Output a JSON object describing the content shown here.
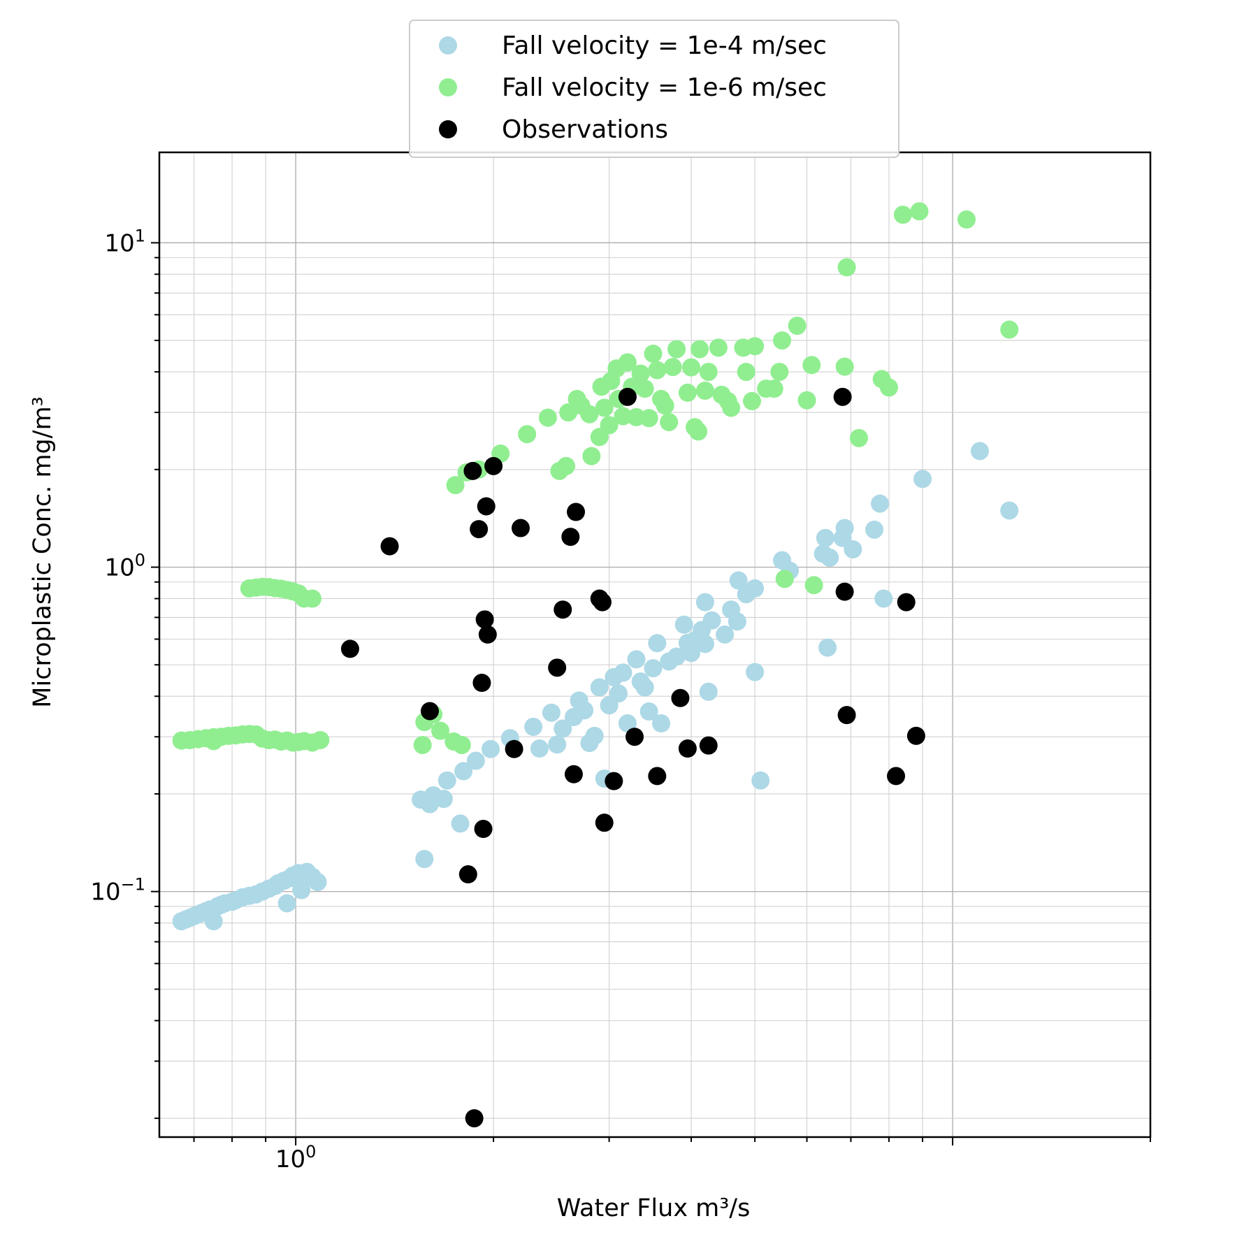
{
  "chart_data": {
    "type": "scatter",
    "title": "",
    "xlabel": "Water Flux m³/s",
    "ylabel": "Microplastic Conc. mg/m³",
    "xscale": "log",
    "yscale": "log",
    "xlim": [
      0.62,
      20
    ],
    "ylim": [
      0.0175,
      19
    ],
    "grid": true,
    "legend_position": "top-center",
    "x_ticks": [
      {
        "value": 1,
        "label": "10",
        "exp": "0"
      }
    ],
    "y_ticks": [
      {
        "value": 0.1,
        "label": "10",
        "exp": "−1"
      },
      {
        "value": 1,
        "label": "10",
        "exp": "0"
      },
      {
        "value": 10,
        "label": "10",
        "exp": "1"
      }
    ],
    "series": [
      {
        "name": "Fall velocity = 1e-4 m/sec",
        "color": "#add8e6",
        "points": [
          [
            0.67,
            0.081
          ],
          [
            0.68,
            0.082
          ],
          [
            0.69,
            0.083
          ],
          [
            0.7,
            0.084
          ],
          [
            0.71,
            0.085
          ],
          [
            0.72,
            0.086
          ],
          [
            0.73,
            0.087
          ],
          [
            0.74,
            0.088
          ],
          [
            0.75,
            0.081
          ],
          [
            0.76,
            0.09
          ],
          [
            0.77,
            0.091
          ],
          [
            0.78,
            0.092
          ],
          [
            0.8,
            0.093
          ],
          [
            0.81,
            0.094
          ],
          [
            0.83,
            0.096
          ],
          [
            0.85,
            0.097
          ],
          [
            0.87,
            0.098
          ],
          [
            0.89,
            0.1
          ],
          [
            0.91,
            0.102
          ],
          [
            0.93,
            0.104
          ],
          [
            0.94,
            0.106
          ],
          [
            0.96,
            0.108
          ],
          [
            0.97,
            0.092
          ],
          [
            0.98,
            0.11
          ],
          [
            0.99,
            0.112
          ],
          [
            1.0,
            0.11
          ],
          [
            1.01,
            0.114
          ],
          [
            1.02,
            0.101
          ],
          [
            1.04,
            0.115
          ],
          [
            1.06,
            0.111
          ],
          [
            1.08,
            0.107
          ],
          [
            1.55,
            0.192
          ],
          [
            1.57,
            0.126
          ],
          [
            1.6,
            0.186
          ],
          [
            1.62,
            0.198
          ],
          [
            1.68,
            0.193
          ],
          [
            1.7,
            0.22
          ],
          [
            1.78,
            0.162
          ],
          [
            1.8,
            0.235
          ],
          [
            1.88,
            0.253
          ],
          [
            1.98,
            0.275
          ],
          [
            2.12,
            0.297
          ],
          [
            2.3,
            0.322
          ],
          [
            2.35,
            0.276
          ],
          [
            2.45,
            0.356
          ],
          [
            2.5,
            0.284
          ],
          [
            2.55,
            0.318
          ],
          [
            2.65,
            0.345
          ],
          [
            2.7,
            0.388
          ],
          [
            2.75,
            0.362
          ],
          [
            2.8,
            0.287
          ],
          [
            2.85,
            0.302
          ],
          [
            2.9,
            0.426
          ],
          [
            2.95,
            0.223
          ],
          [
            3.0,
            0.375
          ],
          [
            3.05,
            0.458
          ],
          [
            3.1,
            0.408
          ],
          [
            3.15,
            0.473
          ],
          [
            3.2,
            0.33
          ],
          [
            3.3,
            0.52
          ],
          [
            3.35,
            0.444
          ],
          [
            3.4,
            0.426
          ],
          [
            3.45,
            0.359
          ],
          [
            3.5,
            0.488
          ],
          [
            3.55,
            0.583
          ],
          [
            3.6,
            0.33
          ],
          [
            3.7,
            0.512
          ],
          [
            3.8,
            0.53
          ],
          [
            3.9,
            0.665
          ],
          [
            3.95,
            0.584
          ],
          [
            4.0,
            0.544
          ],
          [
            4.05,
            0.595
          ],
          [
            4.15,
            0.64
          ],
          [
            4.2,
            0.58
          ],
          [
            4.2,
            0.78
          ],
          [
            4.25,
            0.413
          ],
          [
            4.3,
            0.685
          ],
          [
            4.5,
            0.62
          ],
          [
            4.6,
            0.74
          ],
          [
            4.7,
            0.68
          ],
          [
            4.72,
            0.91
          ],
          [
            4.85,
            0.825
          ],
          [
            5.0,
            0.475
          ],
          [
            5.0,
            0.86
          ],
          [
            5.1,
            0.22
          ],
          [
            5.5,
            1.05
          ],
          [
            5.65,
            0.975
          ],
          [
            6.35,
            1.1
          ],
          [
            6.4,
            1.23
          ],
          [
            6.45,
            0.565
          ],
          [
            6.5,
            1.07
          ],
          [
            6.8,
            1.23
          ],
          [
            6.85,
            1.32
          ],
          [
            7.05,
            1.135
          ],
          [
            7.6,
            1.305
          ],
          [
            7.75,
            1.57
          ],
          [
            7.85,
            0.8
          ],
          [
            9.0,
            1.87
          ],
          [
            11.0,
            2.28
          ],
          [
            12.2,
            1.495
          ]
        ]
      },
      {
        "name": "Fall velocity = 1e-6 m/sec",
        "color": "#90ee90",
        "points": [
          [
            0.67,
            0.292
          ],
          [
            0.69,
            0.293
          ],
          [
            0.71,
            0.295
          ],
          [
            0.73,
            0.297
          ],
          [
            0.75,
            0.299
          ],
          [
            0.75,
            0.291
          ],
          [
            0.77,
            0.3
          ],
          [
            0.79,
            0.302
          ],
          [
            0.81,
            0.303
          ],
          [
            0.83,
            0.305
          ],
          [
            0.85,
            0.306
          ],
          [
            0.87,
            0.305
          ],
          [
            0.89,
            0.296
          ],
          [
            0.91,
            0.293
          ],
          [
            0.93,
            0.294
          ],
          [
            0.95,
            0.29
          ],
          [
            0.97,
            0.292
          ],
          [
            0.99,
            0.288
          ],
          [
            1.01,
            0.289
          ],
          [
            1.03,
            0.291
          ],
          [
            1.06,
            0.288
          ],
          [
            1.09,
            0.293
          ],
          [
            0.85,
            0.86
          ],
          [
            0.87,
            0.865
          ],
          [
            0.89,
            0.87
          ],
          [
            0.91,
            0.868
          ],
          [
            0.93,
            0.862
          ],
          [
            0.95,
            0.858
          ],
          [
            0.97,
            0.85
          ],
          [
            0.99,
            0.842
          ],
          [
            1.01,
            0.83
          ],
          [
            1.03,
            0.8
          ],
          [
            1.06,
            0.8
          ],
          [
            1.56,
            0.283
          ],
          [
            1.57,
            0.333
          ],
          [
            1.62,
            0.352
          ],
          [
            1.66,
            0.313
          ],
          [
            1.74,
            0.29
          ],
          [
            1.79,
            0.283
          ],
          [
            1.75,
            1.79
          ],
          [
            1.82,
            1.96
          ],
          [
            1.9,
            2.0
          ],
          [
            2.05,
            2.24
          ],
          [
            2.25,
            2.57
          ],
          [
            2.42,
            2.89
          ],
          [
            2.52,
            1.98
          ],
          [
            2.58,
            2.05
          ],
          [
            2.6,
            3.0
          ],
          [
            2.68,
            3.3
          ],
          [
            2.72,
            3.15
          ],
          [
            2.8,
            2.96
          ],
          [
            2.82,
            2.2
          ],
          [
            2.9,
            2.52
          ],
          [
            2.92,
            3.6
          ],
          [
            2.95,
            3.1
          ],
          [
            3.0,
            2.74
          ],
          [
            3.02,
            3.75
          ],
          [
            3.08,
            4.1
          ],
          [
            3.1,
            3.3
          ],
          [
            3.15,
            2.92
          ],
          [
            3.2,
            4.28
          ],
          [
            3.25,
            3.6
          ],
          [
            3.3,
            2.9
          ],
          [
            3.35,
            3.95
          ],
          [
            3.4,
            3.55
          ],
          [
            3.45,
            2.88
          ],
          [
            3.5,
            4.55
          ],
          [
            3.55,
            4.05
          ],
          [
            3.6,
            3.3
          ],
          [
            3.65,
            3.15
          ],
          [
            3.7,
            2.8
          ],
          [
            3.75,
            4.14
          ],
          [
            3.8,
            4.7
          ],
          [
            3.95,
            3.45
          ],
          [
            4.0,
            4.13
          ],
          [
            4.05,
            2.7
          ],
          [
            4.1,
            2.62
          ],
          [
            4.12,
            4.7
          ],
          [
            4.2,
            3.5
          ],
          [
            4.25,
            4.0
          ],
          [
            4.4,
            4.75
          ],
          [
            4.45,
            3.4
          ],
          [
            4.55,
            3.25
          ],
          [
            4.6,
            3.1
          ],
          [
            4.8,
            4.75
          ],
          [
            4.85,
            4.0
          ],
          [
            4.95,
            3.25
          ],
          [
            5.0,
            4.8
          ],
          [
            5.2,
            3.55
          ],
          [
            5.35,
            3.55
          ],
          [
            5.45,
            4.0
          ],
          [
            5.5,
            5.0
          ],
          [
            5.55,
            0.92
          ],
          [
            5.8,
            5.55
          ],
          [
            6.0,
            3.27
          ],
          [
            6.1,
            4.2
          ],
          [
            6.15,
            0.88
          ],
          [
            6.85,
            4.15
          ],
          [
            6.9,
            8.4
          ],
          [
            7.2,
            2.5
          ],
          [
            7.8,
            3.8
          ],
          [
            8.0,
            3.58
          ],
          [
            8.4,
            12.2
          ],
          [
            8.9,
            12.5
          ],
          [
            10.5,
            11.8
          ],
          [
            12.2,
            5.4
          ]
        ]
      },
      {
        "name": "Observations",
        "color": "#000000",
        "points": [
          [
            1.21,
            0.56
          ],
          [
            1.39,
            1.16
          ],
          [
            1.6,
            0.36
          ],
          [
            1.83,
            0.113
          ],
          [
            1.87,
            0.02
          ],
          [
            1.86,
            1.98
          ],
          [
            1.9,
            1.31
          ],
          [
            1.92,
            0.44
          ],
          [
            1.93,
            0.156
          ],
          [
            1.94,
            0.69
          ],
          [
            1.95,
            1.54
          ],
          [
            1.96,
            0.62
          ],
          [
            2.0,
            2.05
          ],
          [
            2.15,
            0.275
          ],
          [
            2.2,
            1.32
          ],
          [
            2.5,
            0.49
          ],
          [
            2.55,
            0.74
          ],
          [
            2.62,
            1.24
          ],
          [
            2.65,
            0.23
          ],
          [
            2.67,
            1.48
          ],
          [
            2.9,
            0.8
          ],
          [
            2.93,
            0.78
          ],
          [
            2.95,
            0.163
          ],
          [
            3.05,
            0.219
          ],
          [
            3.2,
            3.35
          ],
          [
            3.28,
            0.3
          ],
          [
            3.55,
            0.227
          ],
          [
            3.85,
            0.395
          ],
          [
            3.95,
            0.276
          ],
          [
            4.25,
            0.282
          ],
          [
            6.8,
            3.35
          ],
          [
            6.85,
            0.84
          ],
          [
            6.9,
            0.35
          ],
          [
            8.2,
            0.227
          ],
          [
            8.5,
            0.78
          ],
          [
            8.8,
            0.302
          ]
        ]
      }
    ]
  }
}
